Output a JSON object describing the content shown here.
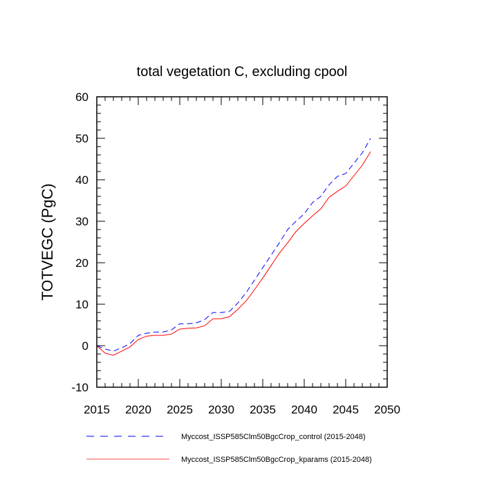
{
  "chart_data": {
    "type": "line",
    "title": "total vegetation C, excluding cpool",
    "xlabel": "",
    "ylabel": "TOTVEGC  (PgC)",
    "xlim": [
      2015,
      2050
    ],
    "ylim": [
      -10,
      60
    ],
    "xticks": [
      2015,
      2020,
      2025,
      2030,
      2035,
      2040,
      2045,
      2050
    ],
    "yticks": [
      -10,
      0,
      10,
      20,
      30,
      40,
      50,
      60
    ],
    "xtick_labels": [
      "2015",
      "2020",
      "2025",
      "2030",
      "2035",
      "2040",
      "2045",
      "2050"
    ],
    "ytick_labels": [
      "-10",
      "0",
      "10",
      "20",
      "30",
      "40",
      "50",
      "60"
    ],
    "grid": false,
    "legend_position": "bottom",
    "x": [
      2015,
      2016,
      2017,
      2018,
      2019,
      2020,
      2021,
      2022,
      2023,
      2024,
      2025,
      2026,
      2027,
      2028,
      2029,
      2030,
      2031,
      2032,
      2033,
      2034,
      2035,
      2036,
      2037,
      2038,
      2039,
      2040,
      2041,
      2042,
      2043,
      2044,
      2045,
      2046,
      2047,
      2048
    ],
    "series": [
      {
        "name": "Myccost_ISSP585Clm50BgcCrop_control (2015-2048)",
        "color": "#0000ff",
        "dash": "dashed",
        "values": [
          0.0,
          -0.8,
          -1.3,
          -0.5,
          0.5,
          2.5,
          3.0,
          3.3,
          3.3,
          3.8,
          5.3,
          5.3,
          5.5,
          6.3,
          8.0,
          8.0,
          8.3,
          10.3,
          12.8,
          15.8,
          18.8,
          21.8,
          24.8,
          28.0,
          30.0,
          31.8,
          34.5,
          36.0,
          38.8,
          40.8,
          41.5,
          44.0,
          46.5,
          50.0
        ]
      },
      {
        "name": "Myccost_ISSP585Clm50BgcCrop_kparams (2015-2048)",
        "color": "#ff0000",
        "dash": "solid",
        "values": [
          0.0,
          -1.8,
          -2.3,
          -1.3,
          -0.3,
          1.5,
          2.3,
          2.5,
          2.5,
          2.8,
          4.0,
          4.2,
          4.3,
          4.8,
          6.5,
          6.5,
          7.0,
          8.8,
          10.8,
          13.5,
          16.3,
          19.3,
          22.3,
          24.8,
          27.5,
          29.5,
          31.3,
          33.0,
          35.8,
          37.2,
          38.5,
          41.0,
          43.5,
          46.8
        ]
      }
    ]
  }
}
